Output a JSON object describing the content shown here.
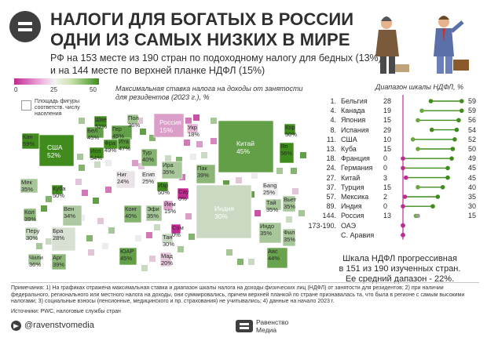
{
  "header": {
    "title_line1": "НАЛОГИ ДЛЯ БОГАТЫХ В РОССИИ",
    "title_line2": "ОДНИ ИЗ САМЫХ НИЗКИХ В МИРЕ",
    "subtitle_line1": "РФ на 153 месте из 190 стран по подоходному налогу для бедных (13%)",
    "subtitle_line2": "и на 144 месте по верхней планке НДФЛ (15%)"
  },
  "legend": {
    "min": "0",
    "mid": "25",
    "max": "50",
    "scale_title_line1": "Максимальная ставка налога на доходы от занятости",
    "scale_title_line2": "для резидентов (2023 г.), %",
    "size_line1": "Площадь фигуры",
    "size_line2": "соответств. числу",
    "size_line3": "населения"
  },
  "colors": {
    "pink": "#c02a93",
    "green": "#3f8c1c",
    "gray": "#9a9a9a"
  },
  "map_labels": [
    {
      "name": "Шве",
      "value": "52%"
    },
    {
      "name": "Пол",
      "value": "36%"
    },
    {
      "name": "Бел",
      "value": "45%"
    },
    {
      "name": "Гер",
      "value": "45%"
    },
    {
      "name": "Фра",
      "value": "49%"
    },
    {
      "name": "Ита",
      "value": "47%"
    },
    {
      "name": "Исп",
      "value": "54%"
    },
    {
      "name": "Россия",
      "value": "15%"
    },
    {
      "name": "Укр",
      "value": "18%"
    },
    {
      "name": "Кан",
      "value": "59%"
    },
    {
      "name": "США",
      "value": "52%"
    },
    {
      "name": "Кор",
      "value": "50%"
    },
    {
      "name": "Китай",
      "value": "45%"
    },
    {
      "name": "Яп",
      "value": "56%"
    },
    {
      "name": "Тур",
      "value": "40%"
    },
    {
      "name": "Ира",
      "value": "35%"
    },
    {
      "name": "Пак",
      "value": "39%"
    },
    {
      "name": "Мек",
      "value": "35%"
    },
    {
      "name": "Куба",
      "value": "50%"
    },
    {
      "name": "Ниг",
      "value": "24%"
    },
    {
      "name": "Изр",
      "value": "50%"
    },
    {
      "name": "Егип",
      "value": "25%"
    },
    {
      "name": "Сау",
      "value": "0%"
    },
    {
      "name": "Бang",
      "value": "25%"
    },
    {
      "name": "Тай",
      "value": "35%"
    },
    {
      "name": "Индия",
      "value": "30%"
    },
    {
      "name": "Вьет",
      "value": "35%"
    },
    {
      "name": "Кол",
      "value": "39%"
    },
    {
      "name": "Вен",
      "value": "34%"
    },
    {
      "name": "Конг",
      "value": "40%"
    },
    {
      "name": "Эфи",
      "value": "35%"
    },
    {
      "name": "Йем",
      "value": "15%"
    },
    {
      "name": "Сом",
      "value": "0%"
    },
    {
      "name": "Тан",
      "value": "30%"
    },
    {
      "name": "Перу",
      "value": "30%"
    },
    {
      "name": "Бра",
      "value": "28%"
    },
    {
      "name": "Индо",
      "value": "35%"
    },
    {
      "name": "Фил",
      "value": "35%"
    },
    {
      "name": "Чили",
      "value": "36%"
    },
    {
      "name": "Арг",
      "value": "39%"
    },
    {
      "name": "ЮАР",
      "value": "45%"
    },
    {
      "name": "Мад",
      "value": "20%"
    },
    {
      "name": "Авс",
      "value": "44%"
    }
  ],
  "chart_data": {
    "type": "dumbbell",
    "title": "Диапазон шкалы НДФЛ, %",
    "columns": [
      "rank",
      "country",
      "min_rate",
      "max_rate"
    ],
    "rows": [
      {
        "rank": "1.",
        "country": "Бельгия",
        "min": 28,
        "max": 59
      },
      {
        "rank": "4.",
        "country": "Канада",
        "min": 19,
        "max": 59
      },
      {
        "rank": "4.",
        "country": "Япония",
        "min": 15,
        "max": 56
      },
      {
        "rank": "8.",
        "country": "Испания",
        "min": 29,
        "max": 54
      },
      {
        "rank": "11.",
        "country": "США",
        "min": 10,
        "max": 52
      },
      {
        "rank": "13.",
        "country": "Куба",
        "min": 15,
        "max": 50
      },
      {
        "rank": "18.",
        "country": "Франция",
        "min": 0,
        "max": 49
      },
      {
        "rank": "24.",
        "country": "Германия",
        "min": 0,
        "max": 45
      },
      {
        "rank": "27.",
        "country": "Китай",
        "min": 3,
        "max": 45
      },
      {
        "rank": "37.",
        "country": "Турция",
        "min": 15,
        "max": 40
      },
      {
        "rank": "57.",
        "country": "Мексика",
        "min": 2,
        "max": 35
      },
      {
        "rank": "89.",
        "country": "Индия",
        "min": 0,
        "max": 30
      },
      {
        "rank": "144.",
        "country": "Россия",
        "min": 13,
        "max": 15
      },
      {
        "rank": "173-190.",
        "country": "ОАЭ",
        "min": 0,
        "max": 0
      },
      {
        "rank": "",
        "country": "С. Аравия",
        "min": 0,
        "max": 0
      }
    ],
    "xlim": [
      0,
      60
    ]
  },
  "summary": {
    "line1": "Шкала НДФЛ прогрессивная",
    "line2": "в 151 из 190 изученных стран.",
    "line3": "Ее средний дапазон - 22%."
  },
  "footer": {
    "note": "Примечания: 1) На графиках отражена максимальная ставка и диапазон шкалы налога на доходы физических лиц (НДФЛ) от занятости для резидентов; 2) при наличии федерального, регионального или местного налога на доходы, они суммировались, причем верхней планкой по стране признавалась та, что была в регионе с самым высокими налогами; 3) социальные взносы (пенсионные, медицинского и пр. страхования) не учитывались; 4) данные на начало 2023 г.",
    "sources": "Источники: PWC, налоговые службы стран",
    "telegram": "@ravenstvomedia",
    "brand_line1": "Равенство",
    "brand_line2": "Медиа"
  }
}
